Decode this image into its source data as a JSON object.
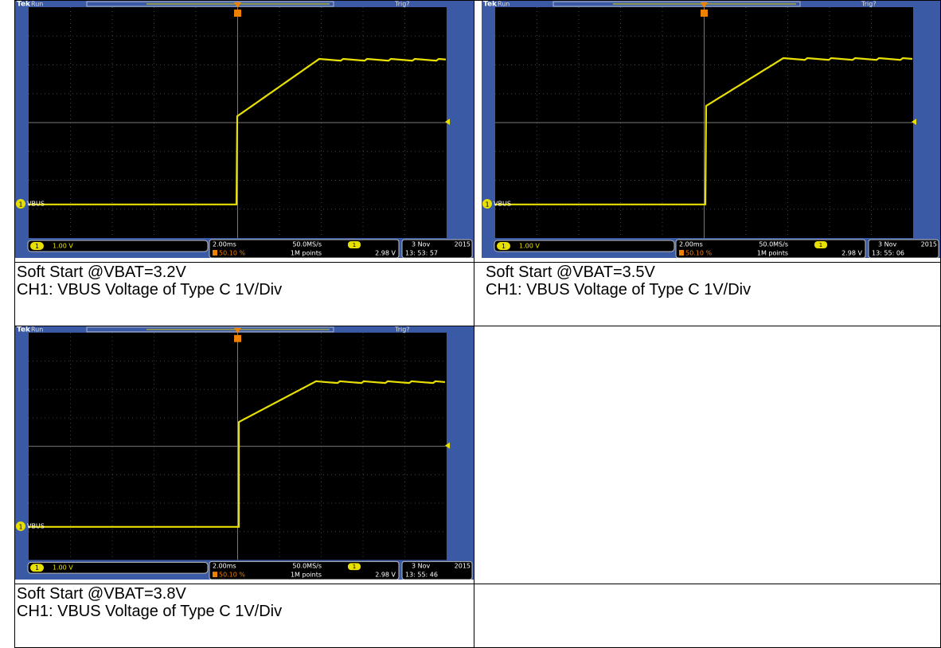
{
  "cells": [
    {
      "scope": {
        "brand": "Tek",
        "state": "Run",
        "trigger_status": "Trig?",
        "channel_marker": "1",
        "channel_label": "VBUS",
        "ch1_scale": "1.00 V",
        "timebase": "2.00ms",
        "trigger_position": "50.10 %",
        "sample_rate": "50.0MS/s",
        "record_length": "1M points",
        "trigger_level": "2.98 V",
        "date": "3 Nov",
        "year": "2015",
        "time": "13: 53: 57"
      },
      "caption": [
        "Soft Start @VBAT=3.2V",
        "CH1: VBUS Voltage of Type C 1V/Div"
      ]
    },
    {
      "scope": {
        "brand": "Tek",
        "state": "Run",
        "trigger_status": "Trig?",
        "channel_marker": "1",
        "channel_label": "VBUS",
        "ch1_scale": "1.00 V",
        "timebase": "2.00ms",
        "trigger_position": "50.10 %",
        "sample_rate": "50.0MS/s",
        "record_length": "1M points",
        "trigger_level": "2.98 V",
        "date": "3 Nov",
        "year": "2015",
        "time": "13: 55: 06"
      },
      "caption": [
        "Soft Start @VBAT=3.5V",
        "CH1: VBUS Voltage of Type C 1V/Div"
      ]
    },
    {
      "scope": {
        "brand": "Tek",
        "state": "Run",
        "trigger_status": "Trig?",
        "channel_marker": "1",
        "channel_label": "VBUS",
        "ch1_scale": "1.00 V",
        "timebase": "2.00ms",
        "trigger_position": "50.10 %",
        "sample_rate": "50.0MS/s",
        "record_length": "1M points",
        "trigger_level": "2.98 V",
        "date": "3 Nov",
        "year": "2015",
        "time": "13: 55: 46"
      },
      "caption": [
        "Soft Start @VBAT=3.8V",
        "CH1: VBUS Voltage of Type C 1V/Div"
      ]
    }
  ]
}
